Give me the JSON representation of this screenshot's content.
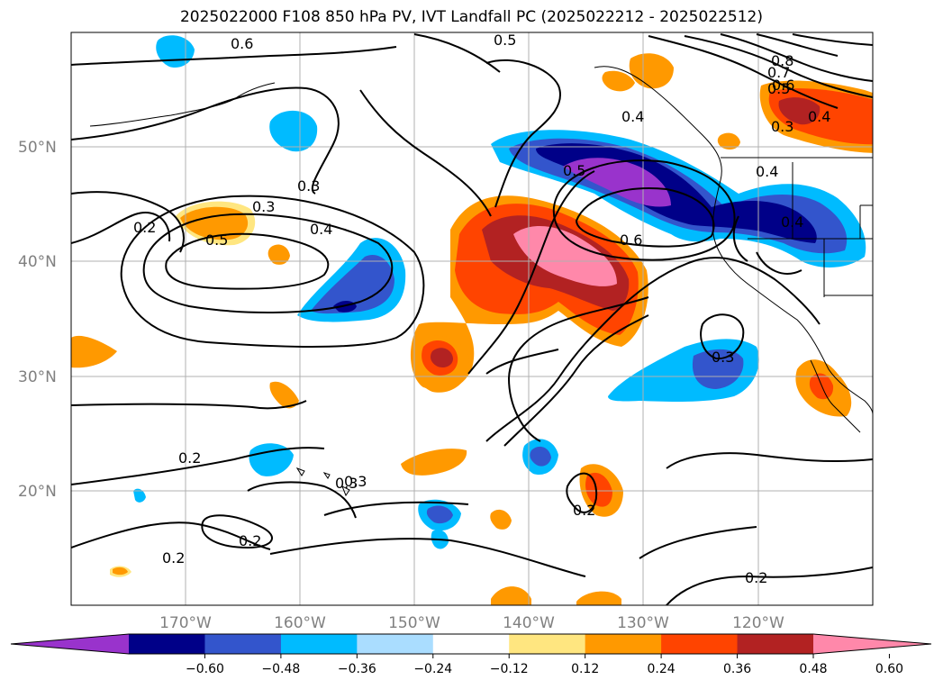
{
  "title": "2025022000 F108 850 hPa PV, IVT Landfall PC (2025022212 - 2025022512)",
  "map": {
    "lon_range": [
      -180,
      -110
    ],
    "lat_range": [
      10,
      60
    ],
    "lat_labels": [
      "50°N",
      "40°N",
      "30°N",
      "20°N"
    ],
    "lat_values": [
      50,
      40,
      30,
      20
    ],
    "lon_labels": [
      "170°W",
      "160°W",
      "150°W",
      "140°W",
      "130°W",
      "120°W"
    ],
    "lon_values": [
      -170,
      -160,
      -150,
      -140,
      -130,
      -120
    ],
    "grid": true
  },
  "colorbar": {
    "ticks": [
      "−0.60",
      "−0.48",
      "−0.36",
      "−0.24",
      "−0.12",
      "0.12",
      "0.24",
      "0.36",
      "0.48",
      "0.60"
    ],
    "colors": [
      "#9933CC",
      "#000088",
      "#3355CC",
      "#00BBFF",
      "#AADDFF",
      "#FFFFFF",
      "#FFE680",
      "#FF9900",
      "#FF4400",
      "#B22222",
      "#FF88AA"
    ]
  },
  "contour_labels": [
    "0.6",
    "0.5",
    "0.8",
    "0.7",
    "0.6",
    "0.5",
    "0.4",
    "0.3",
    "0.4",
    "0.3",
    "0.2",
    "0.3",
    "0.5",
    "0.4",
    "0.5",
    "0.4",
    "0.6",
    "0.4",
    "0.3",
    "0.3",
    "0.2",
    "0.2",
    "0.2",
    "0.2",
    "0.3",
    "0.2"
  ]
}
